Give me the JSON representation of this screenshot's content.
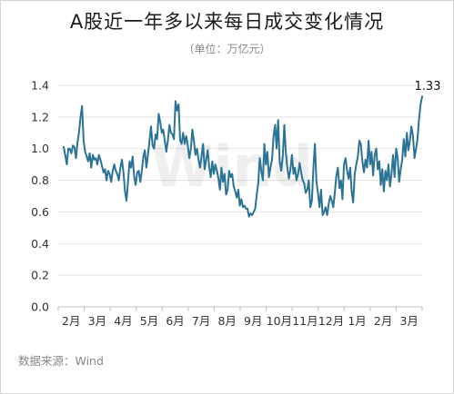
{
  "title": "A股近一年多以来每日成交变化情况",
  "subtitle": "（单位：万亿元）",
  "source": "数据来源：Wind",
  "watermark": "Wind",
  "colors": {
    "line": "#2b7396",
    "grid": "#e3e3e3",
    "axis": "#c0c0c0"
  },
  "chart_data": {
    "type": "line",
    "title": "A股近一年多以来每日成交变化情况",
    "unit": "万亿元",
    "x_tick_labels": [
      "2月",
      "3月",
      "4月",
      "5月",
      "6月",
      "7月",
      "8月",
      "9月",
      "10月",
      "11月",
      "12月",
      "1月",
      "2月",
      "3月"
    ],
    "y_ticks": [
      0.0,
      0.2,
      0.4,
      0.6,
      0.8,
      1.0,
      1.2,
      1.4
    ],
    "ylim": [
      0,
      1.4
    ],
    "grid": true,
    "end_label": "1.33",
    "series": [
      {
        "values": [
          1.01,
          0.96,
          0.9,
          1.0,
          1.0,
          0.97,
          1.02,
          1.01,
          0.94,
          1.04,
          1.1,
          1.2,
          1.27,
          1.05,
          0.98,
          0.95,
          0.92,
          0.97,
          0.88,
          0.96,
          0.93,
          0.94,
          0.9,
          0.96,
          0.93,
          0.89,
          0.85,
          0.87,
          0.8,
          0.86,
          0.84,
          0.79,
          0.86,
          0.9,
          0.86,
          0.84,
          0.8,
          0.88,
          0.93,
          0.85,
          0.73,
          0.67,
          0.79,
          0.92,
          0.88,
          0.95,
          0.82,
          0.77,
          0.85,
          0.86,
          0.79,
          0.86,
          0.95,
          0.99,
          0.88,
          0.96,
          1.05,
          1.14,
          1.02,
          1.0,
          1.09,
          1.06,
          1.22,
          1.17,
          1.1,
          1.12,
          1.05,
          0.98,
          1.05,
          1.15,
          1.1,
          1.09,
          1.06,
          1.3,
          1.24,
          1.28,
          1.05,
          1.03,
          1.1,
          1.03,
          1.08,
          1.02,
          0.94,
          1.0,
          1.12,
          1.05,
          0.96,
          1.0,
          0.93,
          0.88,
          0.95,
          1.03,
          0.87,
          0.93,
          0.99,
          0.88,
          0.82,
          0.92,
          0.84,
          0.9,
          0.86,
          0.81,
          0.74,
          0.88,
          0.79,
          0.84,
          0.71,
          0.74,
          0.86,
          0.82,
          0.84,
          0.76,
          0.73,
          0.69,
          0.74,
          0.64,
          0.68,
          0.63,
          0.64,
          0.62,
          0.62,
          0.57,
          0.59,
          0.58,
          0.6,
          0.62,
          0.71,
          0.78,
          0.94,
          0.86,
          0.8,
          1.03,
          0.9,
          0.98,
          0.82,
          0.88,
          0.93,
          1.08,
          1.15,
          1.0,
          1.18,
          0.92,
          0.86,
          0.95,
          1.15,
          0.98,
          0.88,
          0.81,
          0.87,
          0.96,
          0.84,
          0.88,
          0.8,
          0.84,
          0.91,
          0.85,
          0.8,
          0.78,
          0.72,
          0.74,
          0.8,
          0.63,
          0.67,
          0.88,
          1.03,
          0.79,
          0.72,
          0.63,
          0.74,
          0.58,
          0.6,
          0.63,
          0.58,
          0.65,
          0.7,
          0.67,
          0.63,
          0.72,
          0.83,
          0.88,
          0.75,
          0.8,
          0.68,
          0.9,
          0.94,
          0.86,
          0.81,
          0.88,
          0.73,
          0.66,
          0.84,
          0.9,
          0.95,
          1.05,
          1.03,
          0.92,
          0.85,
          0.93,
          0.88,
          1.05,
          0.9,
          0.98,
          0.83,
          0.96,
          1.0,
          0.87,
          0.92,
          0.77,
          0.87,
          0.73,
          0.86,
          0.8,
          0.9,
          0.76,
          0.84,
          0.96,
          0.82,
          1.0,
          0.94,
          0.79,
          0.87,
          0.93,
          1.06,
          0.95,
          1.1,
          0.99,
          1.05,
          1.14,
          1.08,
          0.94,
          1.0,
          1.06,
          1.19,
          1.28,
          1.33
        ]
      }
    ]
  }
}
